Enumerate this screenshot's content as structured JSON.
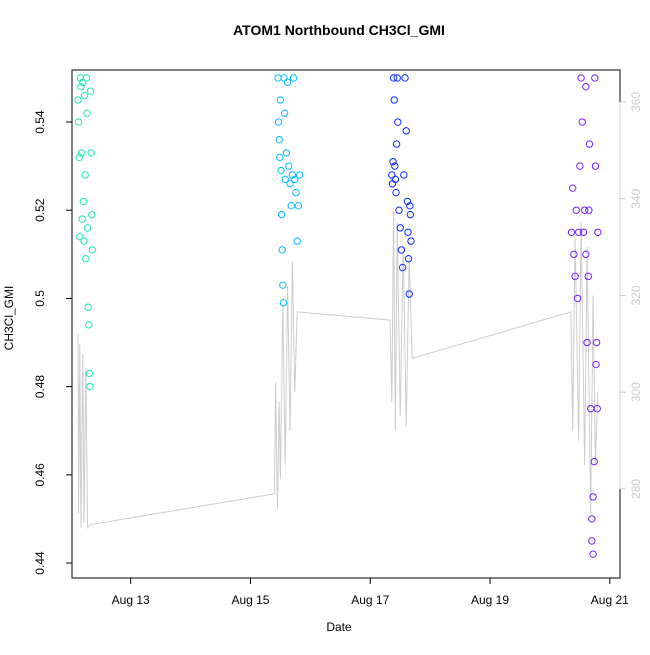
{
  "chart_data": {
    "type": "scatter",
    "title": "ATOM1 Northbound CH3Cl_GMI",
    "xlabel": "Date",
    "ylabel": "CH3Cl_GMI",
    "xlim": [
      12.02,
      21.17
    ],
    "xticks": [
      {
        "value": 13,
        "label": "Aug 13"
      },
      {
        "value": 15,
        "label": "Aug 15"
      },
      {
        "value": 17,
        "label": "Aug 17"
      },
      {
        "value": 19,
        "label": "Aug 19"
      },
      {
        "value": 21,
        "label": "Aug 21"
      }
    ],
    "ylim": [
      0.4366,
      0.5518
    ],
    "yticks": [
      0.44,
      0.46,
      0.48,
      0.5,
      0.52,
      0.54
    ],
    "y2lim": [
      261.6,
      366.6
    ],
    "y2ticks": [
      280,
      300,
      320,
      340,
      360
    ],
    "series": [
      {
        "color": "#1de9b6",
        "x": [
          12.12,
          12.13,
          12.14,
          12.15,
          12.16,
          12.17,
          12.18,
          12.19,
          12.2,
          12.21,
          12.22,
          12.23,
          12.24,
          12.25,
          12.26,
          12.27,
          12.28,
          12.29,
          12.3,
          12.31,
          12.32,
          12.33,
          12.34,
          12.35,
          12.36
        ],
        "values": [
          0.545,
          0.54,
          0.532,
          0.514,
          0.55,
          0.548,
          0.533,
          0.518,
          0.549,
          0.522,
          0.513,
          0.546,
          0.528,
          0.509,
          0.55,
          0.542,
          0.516,
          0.498,
          0.494,
          0.483,
          0.48,
          0.547,
          0.533,
          0.519,
          0.511
        ]
      },
      {
        "color": "#00c0ff",
        "x": [
          15.46,
          15.47,
          15.48,
          15.49,
          15.5,
          15.51,
          15.52,
          15.53,
          15.54,
          15.55,
          15.56,
          15.57,
          15.58,
          15.6,
          15.62,
          15.64,
          15.66,
          15.68,
          15.7,
          15.72,
          15.74,
          15.76,
          15.78,
          15.8,
          15.82
        ],
        "values": [
          0.55,
          0.54,
          0.536,
          0.532,
          0.545,
          0.529,
          0.519,
          0.511,
          0.503,
          0.499,
          0.55,
          0.542,
          0.527,
          0.533,
          0.549,
          0.53,
          0.526,
          0.521,
          0.528,
          0.55,
          0.527,
          0.524,
          0.513,
          0.521,
          0.528
        ]
      },
      {
        "color": "#0a2cff",
        "x": [
          17.36,
          17.37,
          17.38,
          17.39,
          17.4,
          17.41,
          17.42,
          17.43,
          17.44,
          17.45,
          17.46,
          17.48,
          17.5,
          17.52,
          17.54,
          17.56,
          17.58,
          17.6,
          17.62,
          17.63,
          17.64,
          17.65,
          17.66,
          17.67,
          17.68
        ],
        "values": [
          0.528,
          0.526,
          0.531,
          0.55,
          0.545,
          0.53,
          0.527,
          0.524,
          0.535,
          0.55,
          0.54,
          0.52,
          0.516,
          0.511,
          0.507,
          0.528,
          0.55,
          0.538,
          0.522,
          0.515,
          0.509,
          0.501,
          0.521,
          0.519,
          0.513
        ]
      },
      {
        "color": "#7a1fff",
        "x": [
          20.36,
          20.38,
          20.4,
          20.42,
          20.44,
          20.46,
          20.48,
          20.5,
          20.52,
          20.54,
          20.56,
          20.58,
          20.6,
          20.62,
          20.64,
          20.66,
          20.68,
          20.7,
          20.72,
          20.74,
          20.75,
          20.76,
          20.77,
          20.78,
          20.79,
          20.8,
          20.6,
          20.65,
          20.7,
          20.72
        ],
        "values": [
          0.515,
          0.525,
          0.51,
          0.505,
          0.52,
          0.5,
          0.515,
          0.53,
          0.55,
          0.54,
          0.515,
          0.52,
          0.548,
          0.49,
          0.505,
          0.535,
          0.475,
          0.45,
          0.442,
          0.463,
          0.55,
          0.53,
          0.485,
          0.49,
          0.475,
          0.515,
          0.51,
          0.52,
          0.445,
          0.455
        ]
      },
      {
        "type": "line",
        "axis": "y2",
        "color": "#cccccc",
        "x": [
          12.12,
          12.13,
          12.15,
          12.17,
          12.2,
          12.22,
          12.25,
          12.28,
          12.32,
          15.4,
          15.42,
          15.45,
          15.48,
          15.5,
          15.54,
          15.58,
          15.62,
          15.66,
          15.7,
          15.74,
          15.78,
          17.33,
          17.36,
          17.39,
          17.42,
          17.45,
          17.5,
          17.55,
          17.6,
          17.65,
          17.7,
          20.35,
          20.38,
          20.42,
          20.48,
          20.52,
          20.58,
          20.62,
          20.68,
          20.72,
          20.76,
          20.8
        ],
        "values": [
          312,
          275,
          310,
          272,
          308,
          273,
          305,
          272,
          272.6,
          279,
          302,
          276,
          298,
          282,
          318,
          285,
          322,
          292,
          327,
          300,
          316.6,
          314.9,
          298,
          338,
          292,
          335,
          295,
          330,
          293,
          328,
          307,
          316.6,
          292,
          332,
          290,
          335,
          285,
          330,
          275,
          320,
          285,
          300
        ]
      }
    ]
  }
}
